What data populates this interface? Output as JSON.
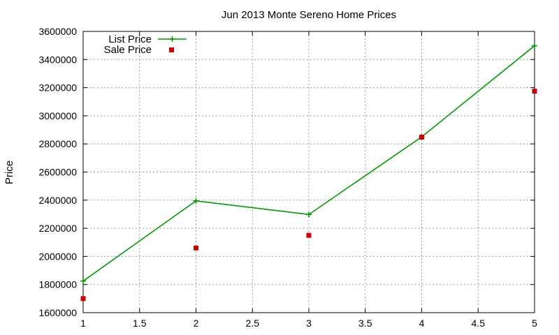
{
  "chart_data": {
    "type": "line",
    "title": "Jun 2013 Monte Sereno Home Prices",
    "xlabel": "",
    "ylabel": "Price",
    "xlim": [
      1,
      5
    ],
    "ylim": [
      1600000,
      3600000
    ],
    "x_ticks": [
      "1",
      "1.5",
      "2",
      "2.5",
      "3",
      "3.5",
      "4",
      "4.5",
      "5"
    ],
    "y_ticks": [
      "1600000",
      "1800000",
      "2000000",
      "2200000",
      "2400000",
      "2600000",
      "2800000",
      "3000000",
      "3200000",
      "3400000",
      "3600000"
    ],
    "grid": true,
    "legend_position": "top-left",
    "series": [
      {
        "name": "List Price",
        "style": "lines+points",
        "marker": "plus",
        "color": "#009900",
        "x": [
          1,
          2,
          3,
          4,
          5
        ],
        "y": [
          1825000,
          2395000,
          2298000,
          2850000,
          3498000
        ]
      },
      {
        "name": "Sale Price",
        "style": "points",
        "marker": "square",
        "color": "#cc0000",
        "x": [
          1,
          2,
          3,
          4,
          5
        ],
        "y": [
          1700000,
          2060000,
          2150000,
          2848000,
          3175000
        ]
      }
    ]
  }
}
